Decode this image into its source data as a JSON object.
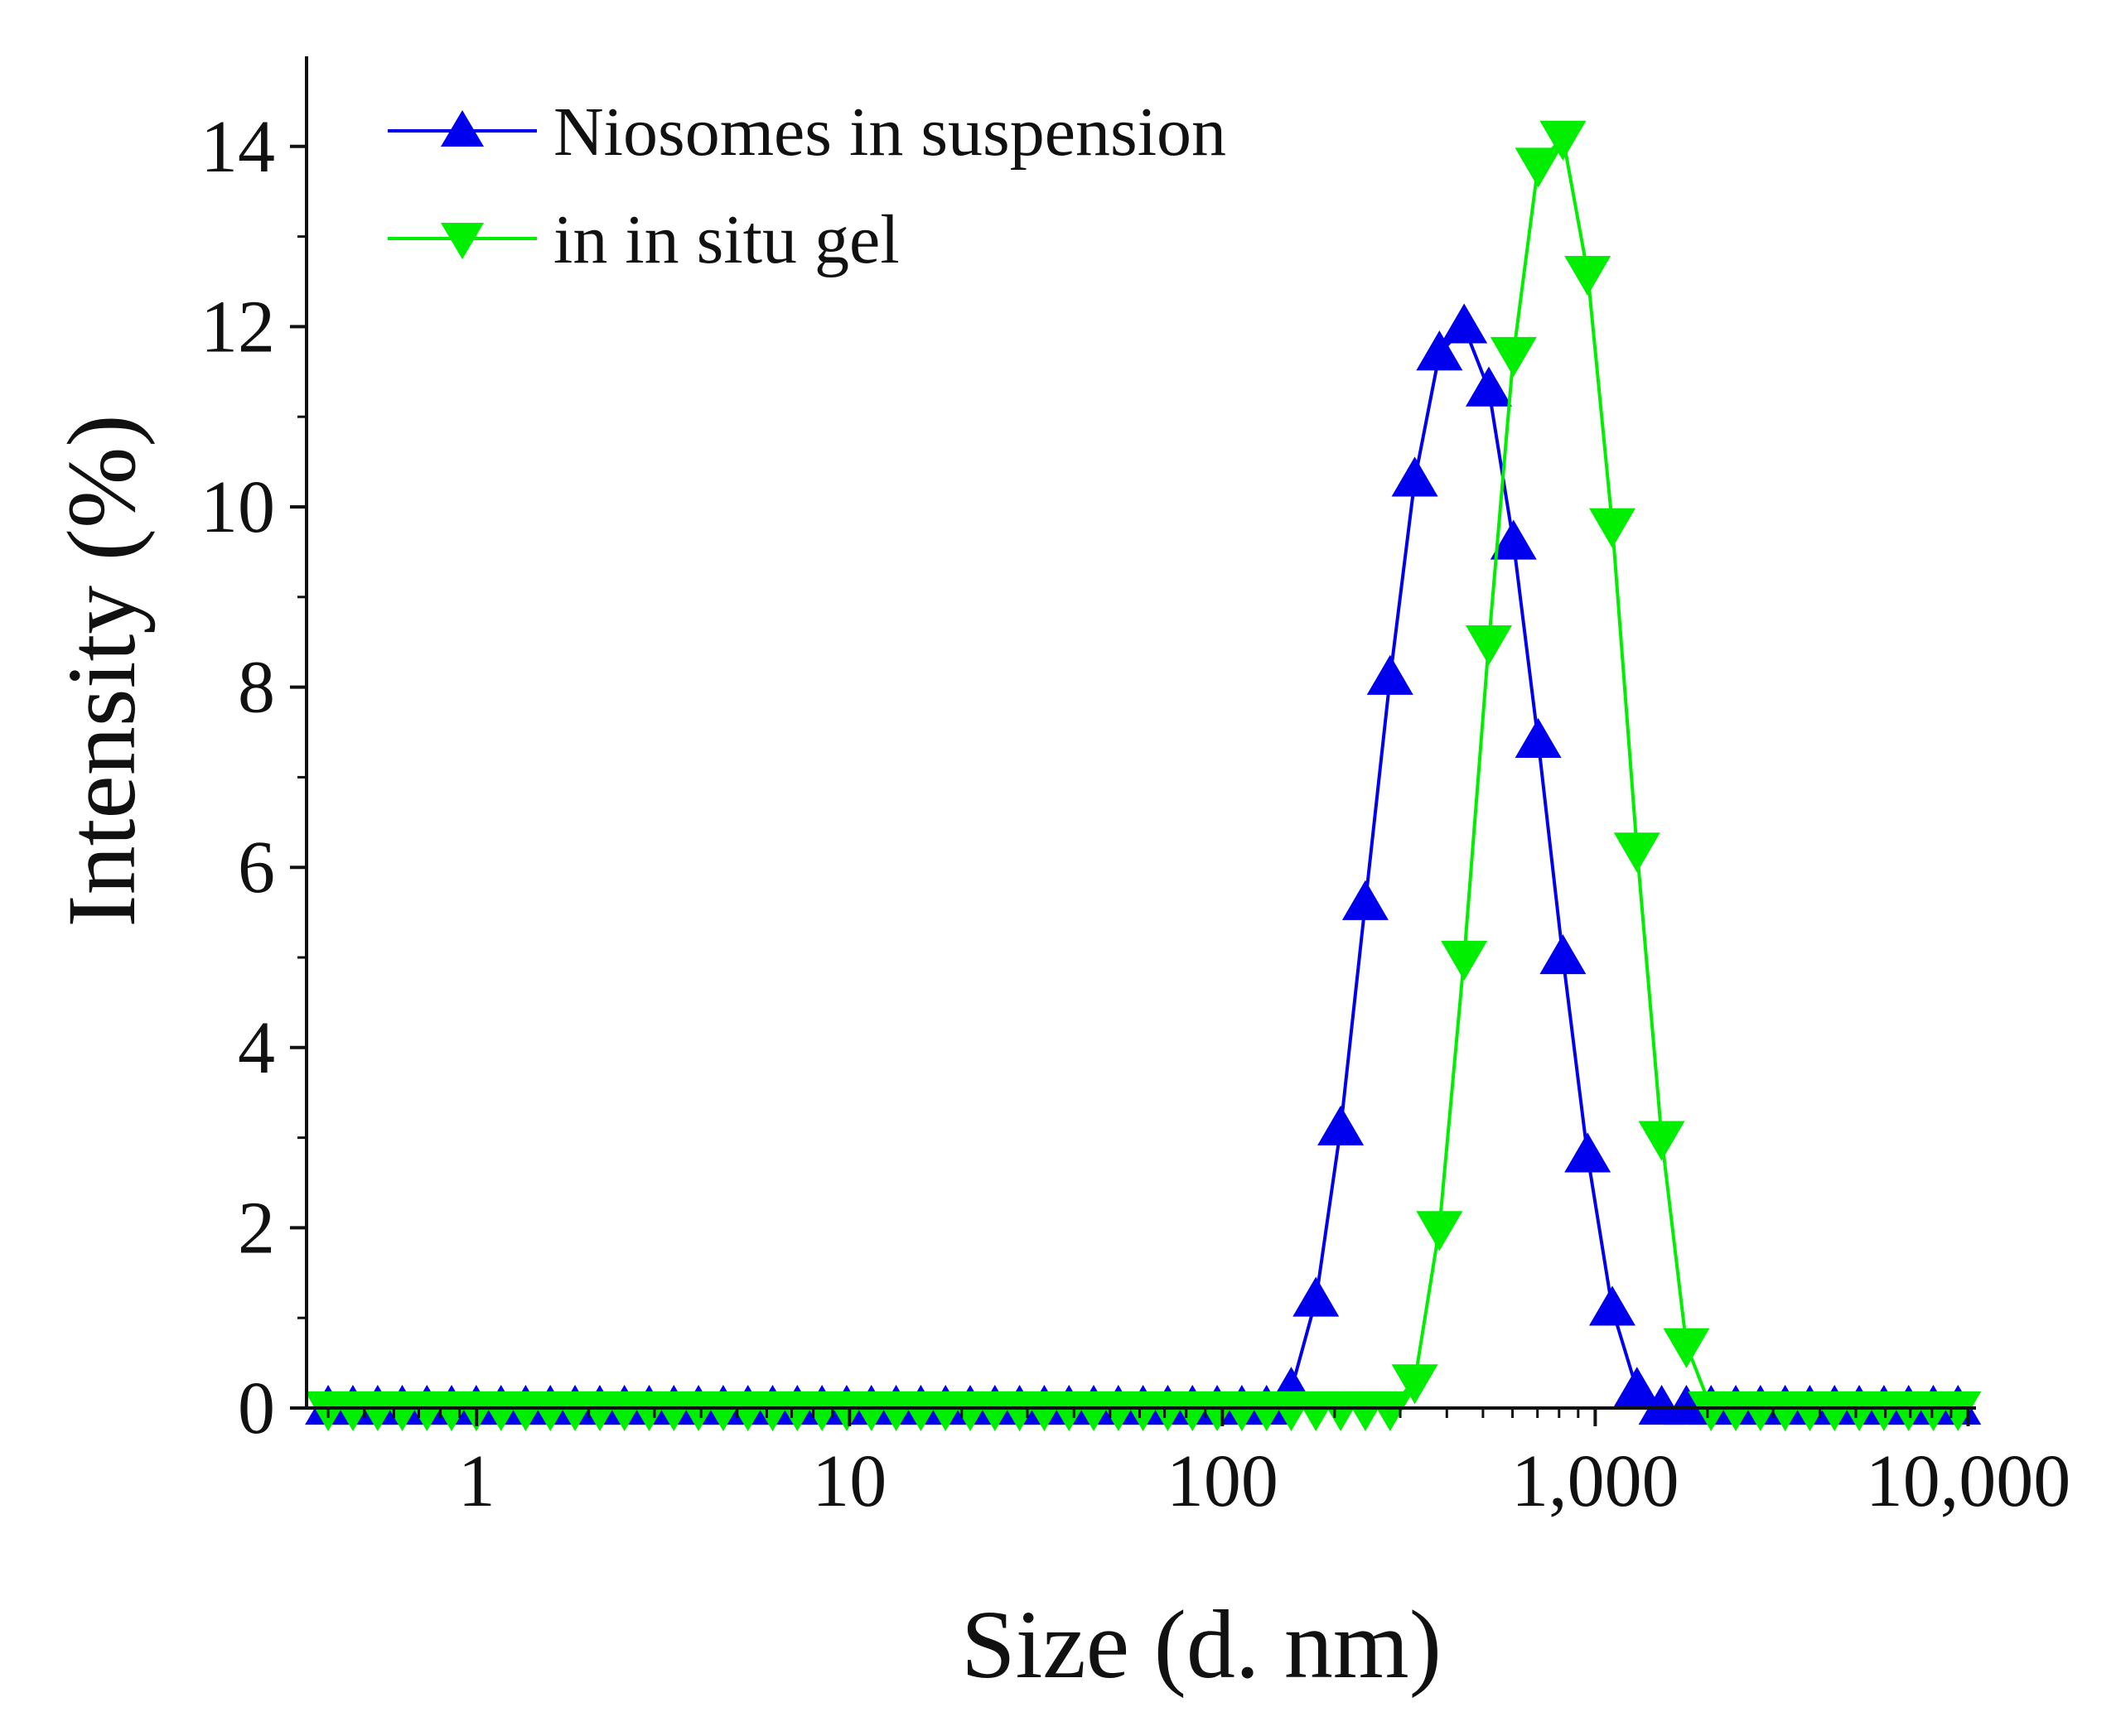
{
  "chart_data": {
    "type": "line",
    "title": "",
    "xlabel": "Size (d. nm)",
    "ylabel": "Intensity (%)",
    "x_scale": "log",
    "xlim": [
      0.35,
      10500
    ],
    "ylim": [
      0,
      15
    ],
    "x_ticks": [
      1,
      10,
      100,
      1000,
      10000
    ],
    "x_tick_labels": [
      "1",
      "10",
      "100",
      "1,000",
      "10,000"
    ],
    "y_ticks": [
      0,
      2,
      4,
      6,
      8,
      10,
      12,
      14
    ],
    "y_tick_labels": [
      "0",
      "2",
      "4",
      "6",
      "8",
      "10",
      "12",
      "14"
    ],
    "legend_position": "top-left",
    "grid": false,
    "series": [
      {
        "name": "Niosomes in suspension",
        "color": "#0000ee",
        "marker": "triangle-up",
        "x": [
          0.4,
          0.466,
          0.543,
          0.632,
          0.736,
          0.857,
          0.998,
          1.163,
          1.354,
          1.577,
          1.837,
          2.14,
          2.492,
          2.903,
          3.381,
          3.938,
          4.587,
          5.342,
          6.222,
          7.247,
          8.441,
          9.831,
          11.45,
          13.34,
          15.54,
          18.1,
          21.08,
          24.55,
          28.59,
          33.3,
          38.79,
          45.18,
          52.62,
          61.29,
          71.39,
          83.15,
          96.85,
          112.8,
          131.4,
          153.0,
          178.2,
          207.6,
          241.8,
          281.7,
          328.1,
          382.1,
          445.1,
          518.4,
          603.8,
          703.2,
          819.0,
          954.0,
          1111,
          1294,
          1507,
          1756,
          2045,
          2382,
          2774,
          3231,
          3763,
          4383,
          5105,
          5946,
          6926,
          8067,
          9395
        ],
        "values": [
          0,
          0,
          0,
          0,
          0,
          0,
          0,
          0,
          0,
          0,
          0,
          0,
          0,
          0,
          0,
          0,
          0,
          0,
          0,
          0,
          0,
          0,
          0,
          0,
          0,
          0,
          0,
          0,
          0,
          0,
          0,
          0,
          0,
          0,
          0,
          0,
          0,
          0,
          0,
          0.2,
          1.2,
          3.1,
          5.6,
          8.1,
          10.3,
          11.7,
          12.0,
          11.3,
          9.6,
          7.4,
          5.0,
          2.8,
          1.1,
          0.2,
          0,
          0,
          0,
          0,
          0,
          0,
          0,
          0,
          0,
          0,
          0,
          0,
          0
        ]
      },
      {
        "name": "in in situ gel",
        "color": "#00ee00",
        "marker": "triangle-down",
        "x": [
          0.4,
          0.466,
          0.543,
          0.632,
          0.736,
          0.857,
          0.998,
          1.163,
          1.354,
          1.577,
          1.837,
          2.14,
          2.492,
          2.903,
          3.381,
          3.938,
          4.587,
          5.342,
          6.222,
          7.247,
          8.441,
          9.831,
          11.45,
          13.34,
          15.54,
          18.1,
          21.08,
          24.55,
          28.59,
          33.3,
          38.79,
          45.18,
          52.62,
          61.29,
          71.39,
          83.15,
          96.85,
          112.8,
          131.4,
          153.0,
          178.2,
          207.6,
          241.8,
          281.7,
          328.1,
          382.1,
          445.1,
          518.4,
          603.8,
          703.2,
          819.0,
          954.0,
          1111,
          1294,
          1507,
          1756,
          2045,
          2382,
          2774,
          3231,
          3763,
          4383,
          5105,
          5946,
          6926,
          8067,
          9395
        ],
        "values": [
          0,
          0,
          0,
          0,
          0,
          0,
          0,
          0,
          0,
          0,
          0,
          0,
          0,
          0,
          0,
          0,
          0,
          0,
          0,
          0,
          0,
          0,
          0,
          0,
          0,
          0,
          0,
          0,
          0,
          0,
          0,
          0,
          0,
          0,
          0,
          0,
          0,
          0,
          0,
          0,
          0,
          0,
          0,
          0,
          0.3,
          2.0,
          5.0,
          8.5,
          11.7,
          13.8,
          14.1,
          12.6,
          9.8,
          6.2,
          3.0,
          0.7,
          0,
          0,
          0,
          0,
          0,
          0,
          0,
          0,
          0,
          0,
          0
        ]
      }
    ]
  }
}
